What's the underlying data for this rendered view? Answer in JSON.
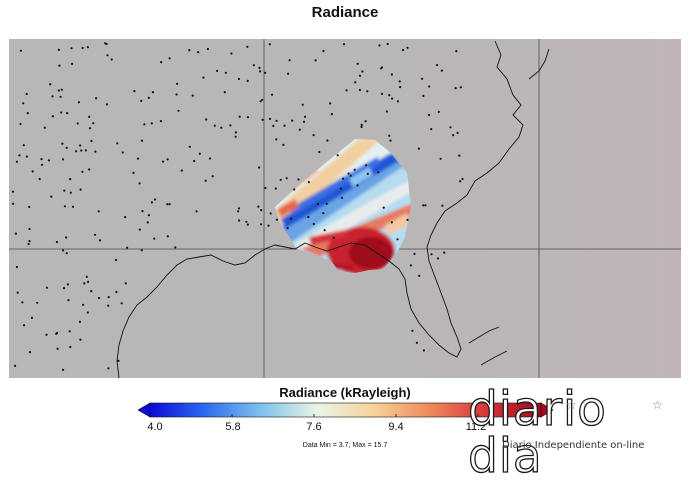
{
  "title": "Radiance",
  "colorbar": {
    "title": "Radiance (kRayleigh)",
    "ticks": [
      "4.0",
      "5.8",
      "7.6",
      "9.4",
      "11.2"
    ],
    "data_range": "Data Min = 3.7, Max = 15.7",
    "colors": [
      "#0a0ad8",
      "#2f6cf0",
      "#7fc3ee",
      "#eaf5e4",
      "#f7d39a",
      "#ef8a5b",
      "#d8363c",
      "#a5081e"
    ]
  },
  "watermark": {
    "logo": "diario dia",
    "tagline": "Diario Independiente on-line"
  },
  "map": {
    "background": "#b9b6b7",
    "station_marker": "dot",
    "gridlines": "on"
  }
}
